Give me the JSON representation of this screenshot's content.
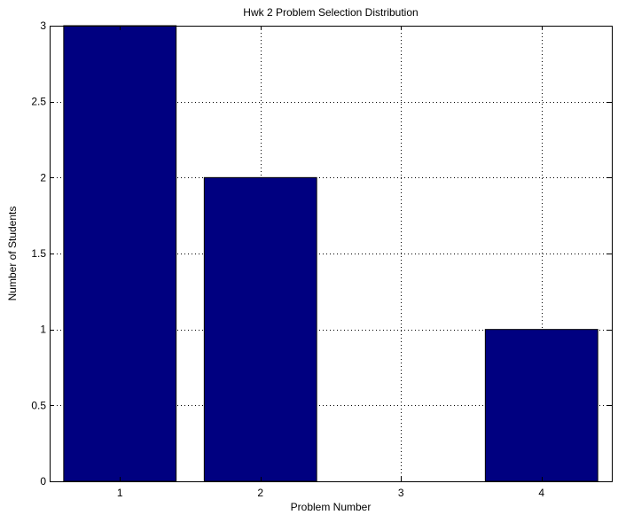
{
  "chart_data": {
    "type": "bar",
    "title": "Hwk 2 Problem Selection Distribution",
    "xlabel": "Problem Number",
    "ylabel": "Number of Students",
    "categories": [
      "1",
      "2",
      "3",
      "4"
    ],
    "values": [
      3,
      2,
      0,
      1
    ],
    "xlim": [
      0.5,
      4.5
    ],
    "ylim": [
      0,
      3
    ],
    "yticks": [
      "0",
      "0.5",
      "1",
      "1.5",
      "2",
      "2.5",
      "3"
    ],
    "grid": true,
    "bar_color": "#000080"
  }
}
